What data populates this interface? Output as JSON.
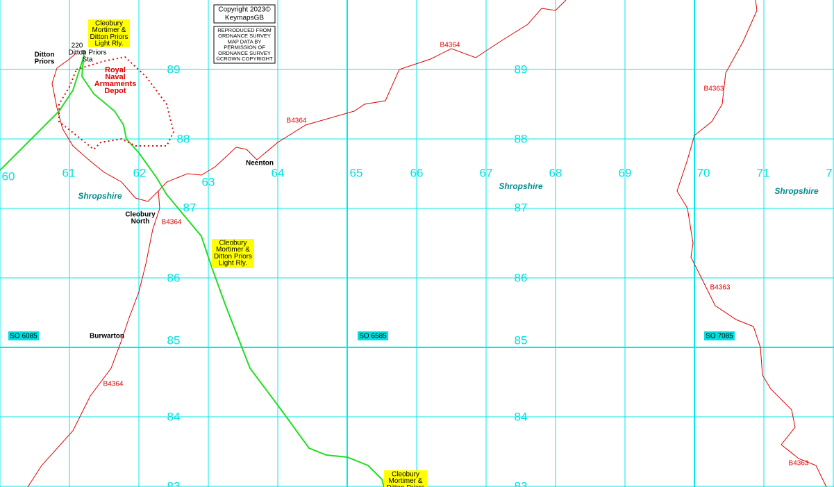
{
  "copyright": [
    "Copyright 2023©",
    "KeymapsGB"
  ],
  "permission": [
    "REPRODUCED FROM",
    "ORDNANCE SURVEY",
    "MAP DATA BY",
    "PERMISSION OF",
    "ORDNANCE SURVEY",
    "©CROWN COPYRIGHT"
  ],
  "easting_labels": [
    "60",
    "61",
    "62",
    "63",
    "64",
    "65",
    "66",
    "67",
    "68",
    "69",
    "70",
    "71",
    "7"
  ],
  "northing_labels_west": [
    "89",
    "88",
    "87",
    "86",
    "85",
    "84",
    "83"
  ],
  "northing_labels_east": [
    "89",
    "88",
    "87",
    "86",
    "85",
    "84",
    "83"
  ],
  "grid_squares": [
    "SO 6085",
    "SO 6585",
    "SO 7085"
  ],
  "places": [
    [
      "Ditton",
      "Priors"
    ],
    [
      "Neenton"
    ],
    [
      "Cleobury",
      "North"
    ],
    [
      "Burwarton"
    ]
  ],
  "station": {
    "height": "220",
    "label": [
      "Ditton Priors",
      "Sta"
    ]
  },
  "depot": [
    "Royal",
    "Naval",
    "Armaments",
    "Depot"
  ],
  "railway_labels": [
    [
      "Cleobury",
      "Mortimer &",
      "Ditton Priors",
      "Light Rly."
    ],
    [
      "Cleobury",
      "Mortimer &",
      "Ditton Priors",
      "Light Rly."
    ],
    [
      "Cleobury",
      "Mortimer &",
      "Ditton Priors"
    ]
  ],
  "road_labels": [
    "B4364",
    "B4364",
    "B4364",
    "B4364",
    "B4363",
    "B4363",
    "B4363"
  ],
  "county_labels": [
    "Shropshire",
    "Shropshire",
    "Shropshire"
  ]
}
